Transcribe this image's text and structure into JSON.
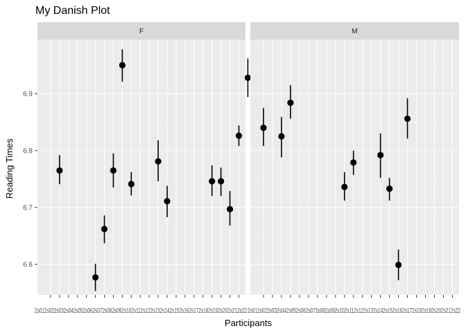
{
  "chart_data": {
    "type": "scatter",
    "title": "My Danish Plot",
    "xlabel": "Participants",
    "ylabel": "Reading Times",
    "facets": [
      "F",
      "M"
    ],
    "x_categories": [
      "2s0",
      "2s0",
      "2s0",
      "2s0",
      "2s0",
      "2s0",
      "2s0",
      "2s0",
      "2s0",
      "2s0",
      "2s1",
      "2s1",
      "2s1",
      "2s1",
      "2s1",
      "2s1",
      "2s1",
      "2s1",
      "2s1",
      "2s1",
      "2s2",
      "2s2"
    ],
    "x_tick_labels": [
      "2s01",
      "2s02",
      "2s03",
      "2s04",
      "2s05",
      "2s06",
      "2s07",
      "2s08",
      "2s09",
      "2s10",
      "2s11",
      "2s12",
      "2s13",
      "2s14",
      "2s15",
      "2s16",
      "2s17",
      "2s18",
      "2s19",
      "2s20",
      "2s21",
      "2s22"
    ],
    "x_tick_text": "2s012s022s032s042s052s062s072s082s092s102s112s122s132s142s152s162s172s182s192s202s212s22",
    "ylim": [
      6.55,
      7.0
    ],
    "y_ticks": [
      6.6,
      6.7,
      6.8,
      6.9
    ],
    "y_tick_labels": [
      "6.6",
      "6.7",
      "6.8",
      "6.9"
    ],
    "grid": true,
    "series": [
      {
        "facet": "F",
        "points": [
          {
            "x": 2,
            "y": 6.765,
            "ymin": 6.741,
            "ymax": 6.792
          },
          {
            "x": 6,
            "y": 6.577,
            "ymin": 6.553,
            "ymax": 6.601
          },
          {
            "x": 7,
            "y": 6.662,
            "ymin": 6.637,
            "ymax": 6.686
          },
          {
            "x": 8,
            "y": 6.765,
            "ymin": 6.735,
            "ymax": 6.795
          },
          {
            "x": 9,
            "y": 6.95,
            "ymin": 6.921,
            "ymax": 6.978
          },
          {
            "x": 10,
            "y": 6.741,
            "ymin": 6.721,
            "ymax": 6.762
          },
          {
            "x": 13,
            "y": 6.781,
            "ymin": 6.746,
            "ymax": 6.818
          },
          {
            "x": 14,
            "y": 6.711,
            "ymin": 6.683,
            "ymax": 6.738
          },
          {
            "x": 19,
            "y": 6.746,
            "ymin": 6.72,
            "ymax": 6.774
          },
          {
            "x": 20,
            "y": 6.746,
            "ymin": 6.72,
            "ymax": 6.77
          },
          {
            "x": 21,
            "y": 6.697,
            "ymin": 6.668,
            "ymax": 6.729
          },
          {
            "x": 22,
            "y": 6.826,
            "ymin": 6.808,
            "ymax": 6.844
          },
          {
            "x": 23,
            "y": 6.928,
            "ymin": 6.894,
            "ymax": 6.962
          }
        ]
      },
      {
        "facet": "M",
        "points": [
          {
            "x": 1,
            "y": 6.84,
            "ymin": 6.808,
            "ymax": 6.875
          },
          {
            "x": 3,
            "y": 6.825,
            "ymin": 6.788,
            "ymax": 6.859
          },
          {
            "x": 4,
            "y": 6.884,
            "ymin": 6.856,
            "ymax": 6.915
          },
          {
            "x": 10,
            "y": 6.736,
            "ymin": 6.712,
            "ymax": 6.762
          },
          {
            "x": 11,
            "y": 6.779,
            "ymin": 6.757,
            "ymax": 6.8
          },
          {
            "x": 14,
            "y": 6.792,
            "ymin": 6.752,
            "ymax": 6.83
          },
          {
            "x": 15,
            "y": 6.733,
            "ymin": 6.712,
            "ymax": 6.752
          },
          {
            "x": 16,
            "y": 6.599,
            "ymin": 6.572,
            "ymax": 6.626
          },
          {
            "x": 17,
            "y": 6.856,
            "ymin": 6.821,
            "ymax": 6.892
          }
        ]
      }
    ]
  }
}
